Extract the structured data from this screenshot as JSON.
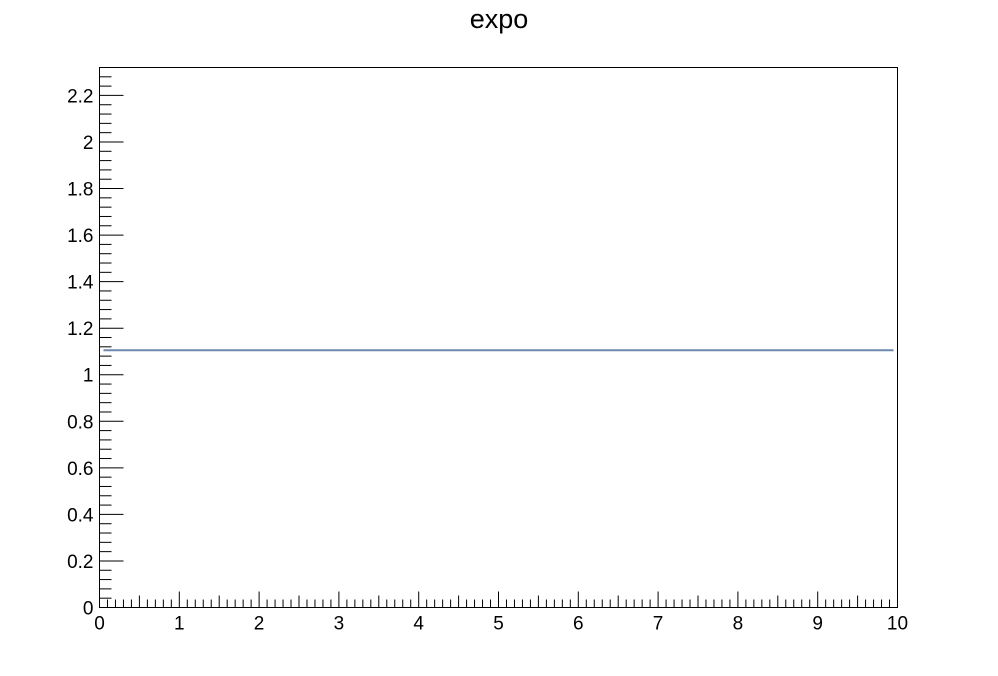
{
  "chart_data": {
    "type": "line",
    "title": "expo",
    "xlabel": "",
    "ylabel": "",
    "xlim": [
      0,
      10
    ],
    "ylim": [
      0,
      2.32
    ],
    "grid": false,
    "x_ticks": [
      0,
      1,
      2,
      3,
      4,
      5,
      6,
      7,
      8,
      9,
      10
    ],
    "x_tick_labels": [
      "0",
      "1",
      "2",
      "3",
      "4",
      "5",
      "6",
      "7",
      "8",
      "9",
      "10"
    ],
    "y_ticks": [
      0,
      0.2,
      0.4,
      0.6,
      0.8,
      1,
      1.2,
      1.4,
      1.6,
      1.8,
      2,
      2.2
    ],
    "y_tick_labels": [
      "0",
      "0.2",
      "0.4",
      "0.6",
      "0.8",
      "1",
      "1.2",
      "1.4",
      "1.6",
      "1.8",
      "2",
      "2.2"
    ],
    "x_minor_per_major": 10,
    "y_minor_per_major": 5,
    "series": [
      {
        "color": "#6f88b0",
        "x": [
          0.05,
          9.95
        ],
        "y": [
          1.105,
          1.105
        ]
      }
    ]
  }
}
